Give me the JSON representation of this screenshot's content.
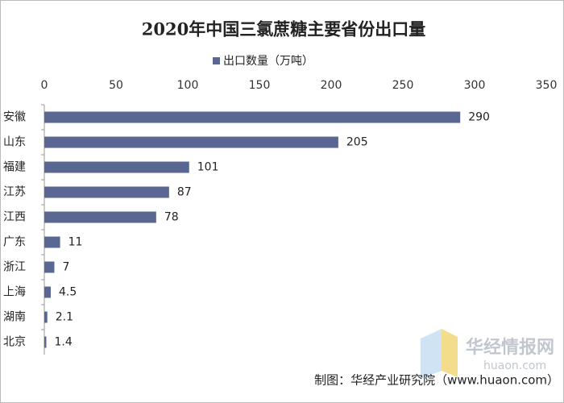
{
  "chart_data": {
    "type": "bar",
    "orientation": "horizontal",
    "title": "2020年中国三氯蔗糖主要省份出口量",
    "categories": [
      "安徽",
      "山东",
      "福建",
      "江苏",
      "江西",
      "广东",
      "浙江",
      "上海",
      "湖南",
      "北京"
    ],
    "series": [
      {
        "name": "出口数量（万吨）",
        "color": "#5b6793",
        "values": [
          290,
          205,
          101,
          87,
          78,
          11,
          7,
          4.5,
          2.1,
          1.4
        ]
      }
    ],
    "xlim": [
      0,
      350
    ],
    "xticks": [
      0,
      50,
      100,
      150,
      200,
      250,
      300,
      350
    ],
    "source": "制图：华经产业研究院（www.huaon.com）",
    "watermark": "华经情报网",
    "watermark_url": "huaon.com"
  }
}
